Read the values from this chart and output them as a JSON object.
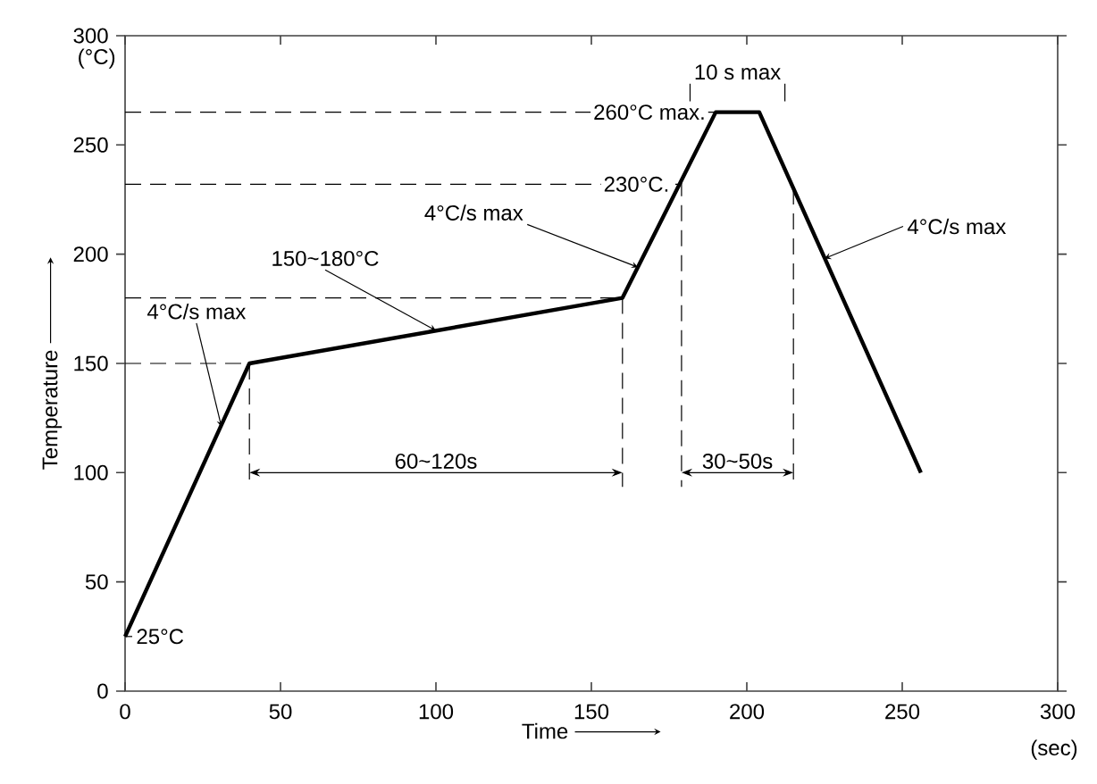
{
  "chart_data": {
    "type": "line",
    "xlabel": "Time",
    "ylabel": "Temperature",
    "x": [
      0,
      40,
      160,
      190,
      204,
      256
    ],
    "values": [
      25,
      150,
      180,
      265,
      265,
      100
    ],
    "color": "#000000",
    "xlim": [
      0,
      300
    ],
    "ylim": [
      0,
      300
    ],
    "xticks": [
      0,
      50,
      100,
      150,
      200,
      250,
      300
    ],
    "yticks": [
      0,
      50,
      100,
      150,
      200,
      250,
      300
    ],
    "ref_lines": [
      {
        "axis": "y",
        "value": 150,
        "color": "#000000",
        "line_style": "dashed"
      },
      {
        "axis": "y",
        "value": 180,
        "color": "#000000",
        "line_style": "dashed"
      },
      {
        "axis": "y",
        "value": 232,
        "label": "230°C.",
        "color": "#000000",
        "line_style": "dashed"
      },
      {
        "axis": "y",
        "value": 265,
        "label": "260°C max.",
        "color": "#000000",
        "line_style": "dashed"
      },
      {
        "axis": "x",
        "value": 40,
        "color": "#000000",
        "line_style": "dashed"
      },
      {
        "axis": "x",
        "value": 160,
        "color": "#000000",
        "line_style": "dashed"
      },
      {
        "axis": "x",
        "value": 179,
        "color": "#000000",
        "line_style": "dashed"
      },
      {
        "axis": "x",
        "value": 215,
        "color": "#000000",
        "line_style": "dashed"
      }
    ],
    "annotations": [
      {
        "text": "25°C",
        "x": 0,
        "y": 25
      },
      {
        "text": "4°C/s max",
        "x": 31,
        "y": 121
      },
      {
        "text": "150~180°C",
        "x": 100,
        "y": 165
      },
      {
        "text": "4°C/s max",
        "x": 165,
        "y": 194
      },
      {
        "text": "4°C/s max",
        "x": 225,
        "y": 198
      },
      {
        "text": "10 s max",
        "x": 197,
        "y": 265
      },
      "(°C)",
      "(sec)",
      "60~120s",
      "30~50s"
    ]
  }
}
